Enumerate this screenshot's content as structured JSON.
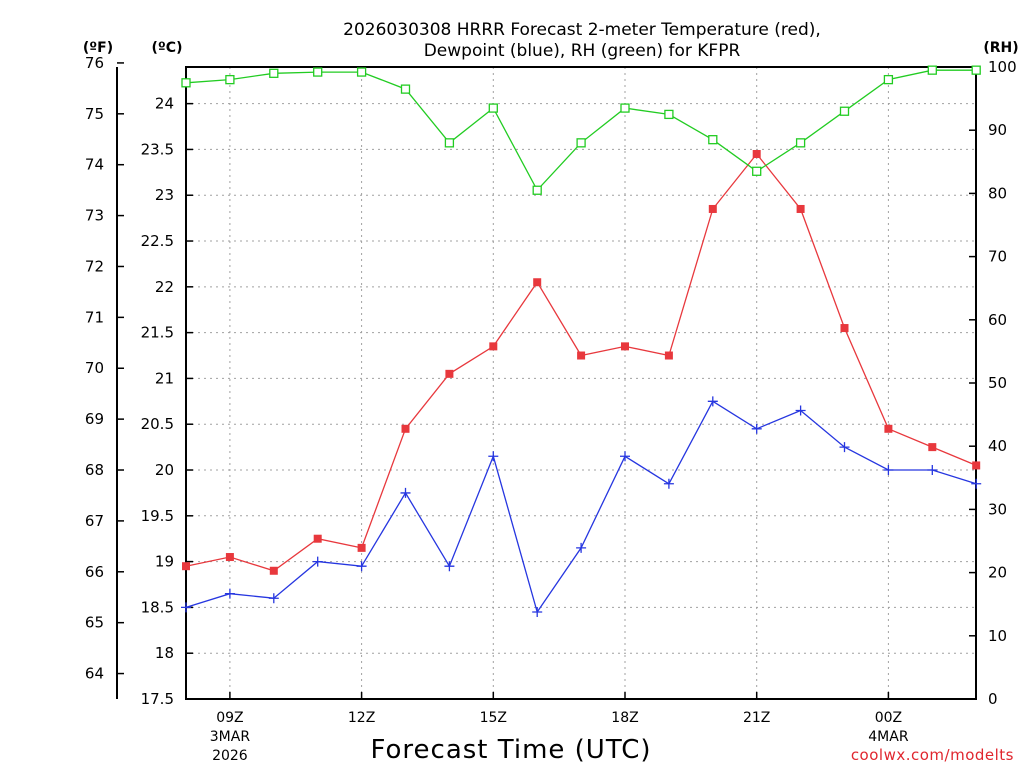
{
  "title_line1": "2026030308 HRRR Forecast 2-meter Temperature (red),",
  "title_line2": "Dewpoint (blue), RH (green) for KFPR",
  "unit_f": "(ºF)",
  "unit_c": "(ºC)",
  "unit_rh": "(RH)",
  "xlabel": "Forecast Time (UTC)",
  "credit": "coolwx.com/modelts",
  "colors": {
    "temperature": "#e8383d",
    "dewpoint": "#2636e0",
    "rh": "#22cc22"
  },
  "chart_data": {
    "type": "line",
    "x": [
      "08Z",
      "09Z",
      "10Z",
      "11Z",
      "12Z",
      "13Z",
      "14Z",
      "15Z",
      "16Z",
      "17Z",
      "18Z",
      "19Z",
      "20Z",
      "21Z",
      "22Z",
      "23Z",
      "00Z",
      "01Z",
      "02Z"
    ],
    "xticks": [
      {
        "hour": "09Z",
        "date1": "3MAR",
        "date2": "2026"
      },
      {
        "hour": "12Z",
        "date1": "",
        "date2": ""
      },
      {
        "hour": "15Z",
        "date1": "",
        "date2": ""
      },
      {
        "hour": "18Z",
        "date1": "",
        "date2": ""
      },
      {
        "hour": "21Z",
        "date1": "",
        "date2": ""
      },
      {
        "hour": "00Z",
        "date1": "4MAR",
        "date2": ""
      }
    ],
    "y_left_c": {
      "ylim": [
        17.5,
        24.4
      ],
      "ticks": [
        "17.5",
        "18",
        "18.5",
        "19",
        "19.5",
        "20",
        "20.5",
        "21",
        "21.5",
        "22",
        "22.5",
        "23",
        "23.5",
        "24"
      ]
    },
    "y_left_f": {
      "ticks": [
        "64",
        "65",
        "66",
        "67",
        "68",
        "69",
        "70",
        "71",
        "72",
        "73",
        "74",
        "75",
        "76"
      ]
    },
    "y_right_rh": {
      "ylim": [
        0,
        100
      ],
      "ticks": [
        "0",
        "10",
        "20",
        "30",
        "40",
        "50",
        "60",
        "70",
        "80",
        "90",
        "100"
      ]
    },
    "grid": true,
    "series": [
      {
        "key": "temperature",
        "axis": "c",
        "marker": "square-filled",
        "values": [
          18.95,
          19.05,
          18.9,
          19.25,
          19.15,
          20.45,
          21.05,
          21.35,
          22.05,
          21.25,
          21.35,
          21.25,
          22.85,
          23.45,
          22.85,
          21.55,
          20.45,
          20.25,
          20.05
        ]
      },
      {
        "key": "dewpoint",
        "axis": "c",
        "marker": "plus",
        "values": [
          18.5,
          18.65,
          18.6,
          19.0,
          18.95,
          19.75,
          18.95,
          20.15,
          18.45,
          19.15,
          20.15,
          19.85,
          20.75,
          20.45,
          20.65,
          20.25,
          20.0,
          20.0,
          19.85
        ]
      },
      {
        "key": "rh",
        "axis": "rh",
        "marker": "square-open",
        "values": [
          97.5,
          98,
          99,
          99.2,
          99.2,
          96.5,
          88,
          93.5,
          80.5,
          88,
          93.5,
          92.5,
          88.5,
          83.5,
          88,
          93,
          98,
          99.5,
          99.5
        ]
      }
    ]
  }
}
